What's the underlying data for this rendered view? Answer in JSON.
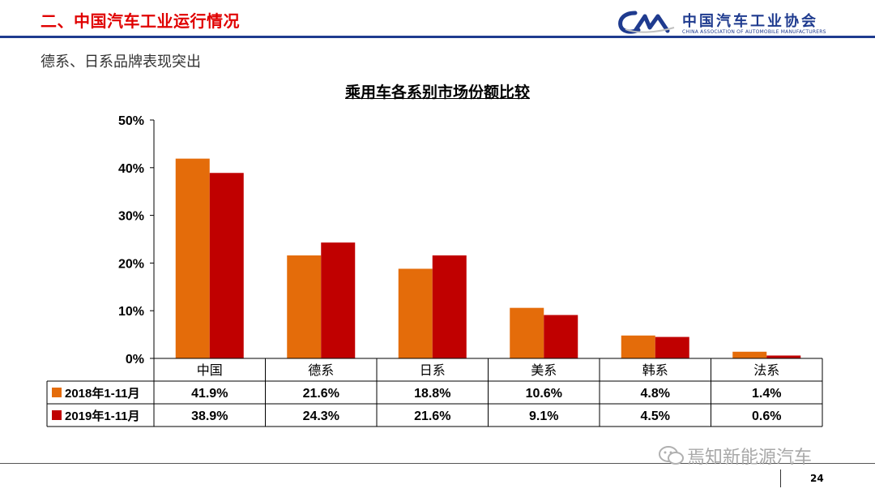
{
  "header": {
    "title": "二、中国汽车工业运行情况",
    "logo_cn": "中国汽车工业协会",
    "logo_en": "CHINA ASSOCIATION OF AUTOMOBILE MANUFACTURERS",
    "logo_icon": "caam-logo-icon",
    "accent_color": "#1f3b8f",
    "title_color": "#e00000"
  },
  "subtitle": "德系、日系品牌表现突出",
  "footer": {
    "page_number": "24",
    "watermark_text": "焉知新能源汽车",
    "watermark_icon": "wechat-icon"
  },
  "chart_data": {
    "type": "bar",
    "title": "乘用车各系别市场份额比较",
    "categories": [
      "中国",
      "德系",
      "日系",
      "美系",
      "韩系",
      "法系"
    ],
    "ylim": [
      0,
      50
    ],
    "yticks": [
      "0%",
      "10%",
      "20%",
      "30%",
      "40%",
      "50%"
    ],
    "grid": false,
    "legend": "data-table",
    "series": [
      {
        "name": "2018年1-11月",
        "color": "#e46c0a",
        "values": [
          41.9,
          21.6,
          18.8,
          10.6,
          4.8,
          1.4
        ],
        "labels": [
          "41.9%",
          "21.6%",
          "18.8%",
          "10.6%",
          "4.8%",
          "1.4%"
        ]
      },
      {
        "name": "2019年1-11月",
        "color": "#c00000",
        "values": [
          38.9,
          24.3,
          21.6,
          9.1,
          4.5,
          0.6
        ],
        "labels": [
          "38.9%",
          "24.3%",
          "21.6%",
          "9.1%",
          "4.5%",
          "0.6%"
        ]
      }
    ]
  }
}
